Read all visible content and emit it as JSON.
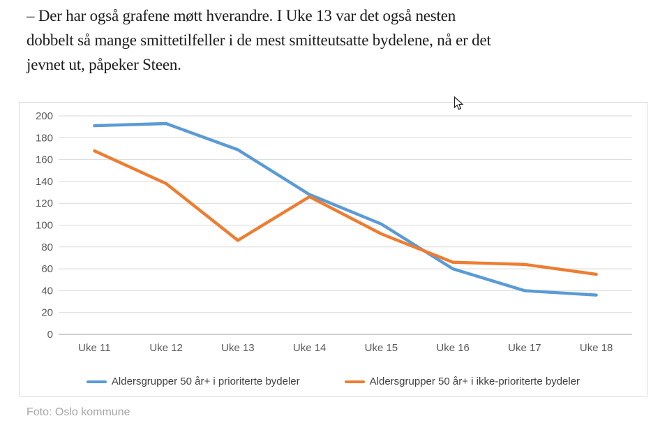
{
  "article": {
    "lines": [
      "– Der har også grafene møtt hverandre. I Uke 13 var det også nesten",
      "dobbelt så mange smittetilfeller i de mest smitteutsatte bydelene, nå er det",
      "jevnet ut, påpeker Steen."
    ],
    "photo_credit": "Foto: Oslo kommune"
  },
  "chart_data": {
    "type": "line",
    "title": "",
    "xlabel": "",
    "ylabel": "",
    "categories": [
      "Uke 11",
      "Uke 12",
      "Uke 13",
      "Uke 14",
      "Uke 15",
      "Uke 16",
      "Uke 17",
      "Uke 18"
    ],
    "series": [
      {
        "name": "Aldersgrupper 50 år+ i prioriterte bydeler",
        "color": "#5B9BD5",
        "values": [
          191,
          193,
          169,
          128,
          101,
          60,
          40,
          36
        ]
      },
      {
        "name": "Aldersgrupper 50 år+ i ikke-prioriterte bydeler",
        "color": "#ED7D31",
        "values": [
          168,
          138,
          86,
          126,
          92,
          66,
          64,
          55
        ]
      }
    ],
    "ylim": [
      0,
      200
    ],
    "ytick_step": 20,
    "grid": true,
    "legend_position": "bottom"
  },
  "colors": {
    "gridline": "#d9d9d9",
    "axis_line": "#bfbfbf",
    "tick_label": "#595959",
    "frame_border": "#d9d9d9"
  }
}
